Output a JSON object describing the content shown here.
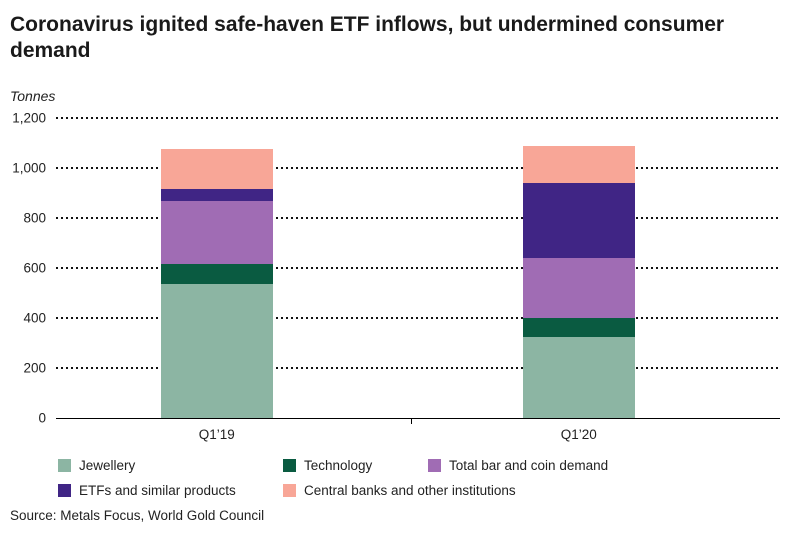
{
  "title": "Coronavirus ignited safe-haven ETF inflows, but undermined consumer demand",
  "source": "Source: Metals Focus, World Gold Council",
  "chart_data": {
    "type": "bar",
    "stacked": true,
    "title": "Coronavirus ignited safe-haven ETF inflows, but undermined consumer demand",
    "ylabel": "Tonnes",
    "categories": [
      "Q1’19",
      "Q1’20"
    ],
    "series": [
      {
        "name": "Jewellery",
        "color": "#8cb5a3",
        "values": [
          535,
          325
        ]
      },
      {
        "name": "Technology",
        "color": "#0a5b41",
        "values": [
          80,
          75
        ]
      },
      {
        "name": "Total bar and coin demand",
        "color": "#a06cb4",
        "values": [
          255,
          240
        ]
      },
      {
        "name": "ETFs and similar products",
        "color": "#402585",
        "values": [
          45,
          300
        ]
      },
      {
        "name": "Central banks and other institutions",
        "color": "#f8a697",
        "values": [
          160,
          150
        ]
      }
    ],
    "ylim": [
      0,
      1200
    ],
    "yticks": [
      0,
      200,
      400,
      600,
      800,
      1000,
      1200
    ],
    "ytick_labels": [
      "0",
      "200",
      "400",
      "600",
      "800",
      "1,000",
      "1,200"
    ],
    "grid": "horizontal-dotted",
    "legend_position": "bottom"
  }
}
